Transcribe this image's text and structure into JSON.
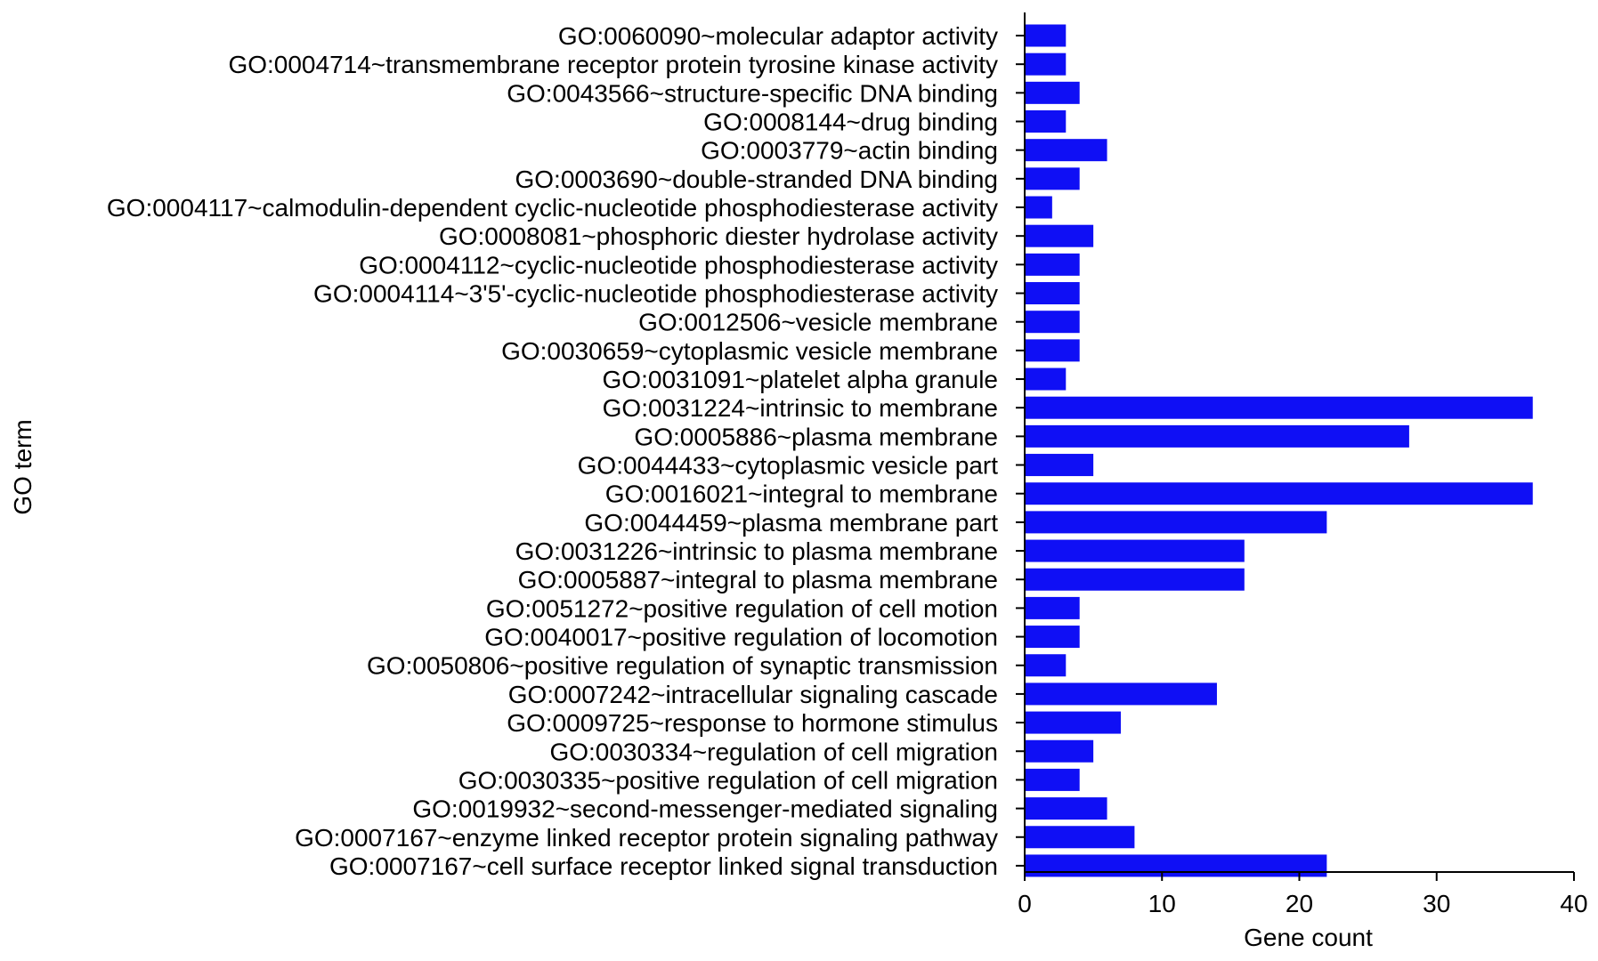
{
  "chart_data": {
    "type": "bar",
    "orientation": "horizontal",
    "xlabel": "Gene count",
    "ylabel": "GO term",
    "xlim": [
      0,
      40
    ],
    "xticks": [
      "0",
      "10",
      "20",
      "30",
      "40"
    ],
    "grid": false,
    "legend": "none",
    "colors": {
      "bar": "#0f0ff5",
      "axis": "#000000"
    },
    "categories": [
      "GO:0060090~molecular adaptor activity",
      "GO:0004714~transmembrane receptor protein tyrosine kinase activity",
      "GO:0043566~structure-specific DNA binding",
      "GO:0008144~drug binding",
      "GO:0003779~actin binding",
      "GO:0003690~double-stranded DNA binding",
      "GO:0004117~calmodulin-dependent cyclic-nucleotide phosphodiesterase activity",
      "GO:0008081~phosphoric diester hydrolase activity",
      "GO:0004112~cyclic-nucleotide phosphodiesterase activity",
      "GO:0004114~3'5'-cyclic-nucleotide phosphodiesterase activity",
      "GO:0012506~vesicle membrane",
      "GO:0030659~cytoplasmic vesicle membrane",
      "GO:0031091~platelet alpha granule",
      "GO:0031224~intrinsic to membrane",
      "GO:0005886~plasma membrane",
      "GO:0044433~cytoplasmic vesicle part",
      "GO:0016021~integral to membrane",
      "GO:0044459~plasma membrane part",
      "GO:0031226~intrinsic to plasma membrane",
      "GO:0005887~integral to plasma membrane",
      "GO:0051272~positive regulation of cell motion",
      "GO:0040017~positive regulation of locomotion",
      "GO:0050806~positive regulation of synaptic transmission",
      "GO:0007242~intracellular signaling cascade",
      "GO:0009725~response to hormone stimulus",
      "GO:0030334~regulation of cell migration",
      "GO:0030335~positive regulation of cell migration",
      "GO:0019932~second-messenger-mediated signaling",
      "GO:0007167~enzyme linked receptor protein signaling pathway",
      "GO:0007167~cell surface receptor linked signal transduction"
    ],
    "values": [
      3,
      3,
      4,
      3,
      6,
      4,
      2,
      5,
      4,
      4,
      4,
      4,
      3,
      37,
      28,
      5,
      37,
      22,
      16,
      16,
      4,
      4,
      3,
      14,
      7,
      5,
      4,
      6,
      8,
      22
    ]
  }
}
